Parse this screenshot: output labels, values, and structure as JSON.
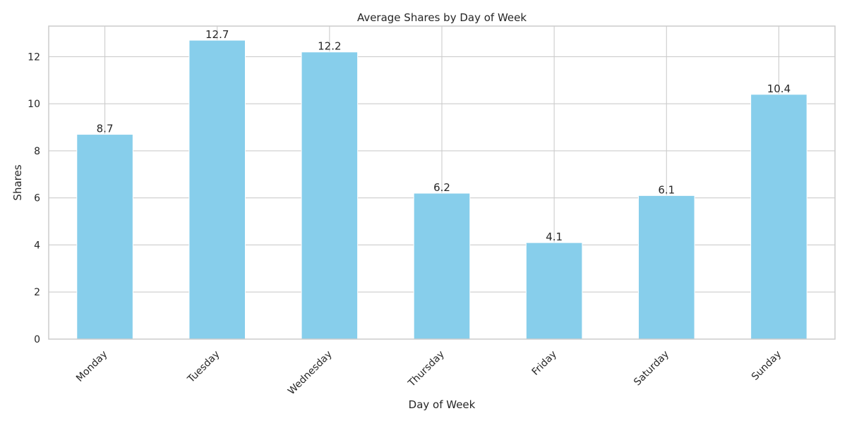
{
  "chart_data": {
    "type": "bar",
    "title": "Average Shares by Day of Week",
    "xlabel": "Day of Week",
    "ylabel": "Shares",
    "categories": [
      "Monday",
      "Tuesday",
      "Wednesday",
      "Thursday",
      "Friday",
      "Saturday",
      "Sunday"
    ],
    "values": [
      8.7,
      12.7,
      12.2,
      6.2,
      4.1,
      6.1,
      10.4
    ],
    "value_labels": [
      "8.7",
      "12.7",
      "12.2",
      "6.2",
      "4.1",
      "6.1",
      "10.4"
    ],
    "ylim": [
      0,
      13.3
    ],
    "yticks": [
      0,
      2,
      4,
      6,
      8,
      10,
      12
    ],
    "grid": true,
    "legend": "none",
    "bar_color": "#87ceeb",
    "grid_color": "#cccccc",
    "spine_color": "#cccccc",
    "text_color": "#262626"
  }
}
